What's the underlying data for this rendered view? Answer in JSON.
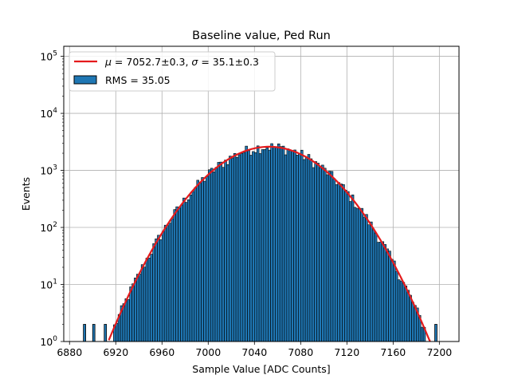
{
  "chart_data": {
    "type": "bar",
    "title": "Baseline value, Ped Run",
    "xlabel": "Sample Value [ADC Counts]",
    "ylabel": "Events",
    "xlim": [
      6875,
      7217
    ],
    "ylim": [
      1,
      150000
    ],
    "yscale": "log",
    "grid": true,
    "legend_position": "top-left",
    "x_ticks": [
      "6880",
      "6920",
      "6960",
      "7000",
      "7040",
      "7080",
      "7120",
      "7160",
      "7200"
    ],
    "y_ticks": [
      {
        "base": "10",
        "exp": "0"
      },
      {
        "base": "10",
        "exp": "1"
      },
      {
        "base": "10",
        "exp": "2"
      },
      {
        "base": "10",
        "exp": "3"
      },
      {
        "base": "10",
        "exp": "4"
      },
      {
        "base": "10",
        "exp": "5"
      }
    ],
    "legend": {
      "fit_label": {
        "mu_sym": "μ",
        "mu_val": " = 7052.7±0.3, ",
        "sigma_sym": "σ",
        "sigma_val": " = 35.1±0.3"
      },
      "hist_label": "RMS = 35.05"
    },
    "histogram": {
      "bin_width": 2,
      "fill_color": "#1f77b4",
      "edge_color": "#000000",
      "peak_events": 2600,
      "mean": 7052.7,
      "sigma": 35.1,
      "range": [
        6918,
        7188
      ],
      "outlier_bins": [
        {
          "x": 6893,
          "events": 2
        },
        {
          "x": 6901,
          "events": 2
        },
        {
          "x": 6911,
          "events": 2
        },
        {
          "x": 7197,
          "events": 2
        }
      ]
    },
    "fit": {
      "type": "gaussian",
      "mean": 7052.7,
      "sigma": 35.1,
      "amplitude": 2600,
      "color": "#e41a1c"
    }
  }
}
